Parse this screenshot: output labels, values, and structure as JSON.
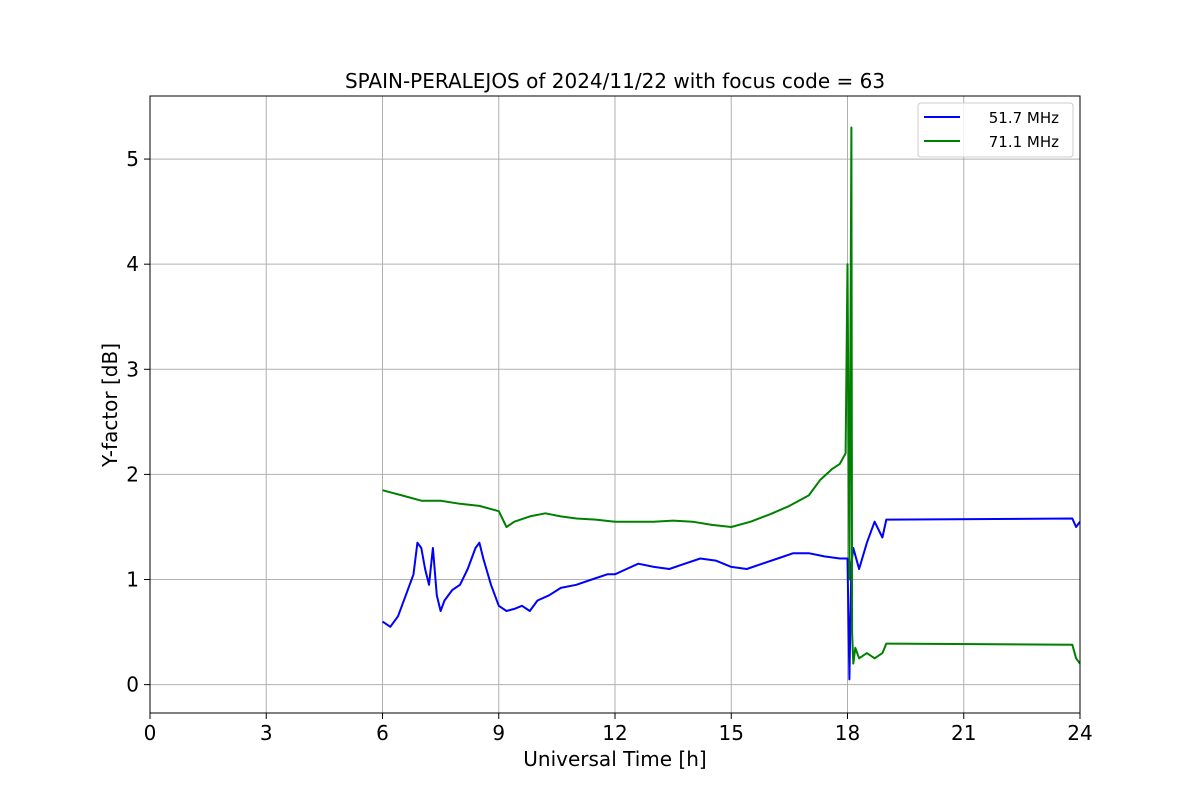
{
  "chart_data": {
    "type": "line",
    "title": "SPAIN-PERALEJOS of 2024/11/22 with focus code = 63",
    "xlabel": "Universal Time [h]",
    "ylabel": "Y-factor [dB]",
    "xlim": [
      0,
      24
    ],
    "ylim": [
      -0.27,
      5.6
    ],
    "xticks": [
      0,
      3,
      6,
      9,
      12,
      15,
      18,
      21,
      24
    ],
    "xtick_labels": [
      "0",
      "3",
      "6",
      "9",
      "12",
      "15",
      "18",
      "21",
      "24"
    ],
    "yticks": [
      0,
      1,
      2,
      3,
      4,
      5
    ],
    "ytick_labels": [
      "0",
      "1",
      "2",
      "3",
      "4",
      "5"
    ],
    "grid": true,
    "legend_position": "top-right",
    "series": [
      {
        "name": "51.7 MHz",
        "color": "#0000ff",
        "x": [
          6.0,
          6.2,
          6.4,
          6.6,
          6.8,
          6.9,
          7.0,
          7.1,
          7.2,
          7.3,
          7.4,
          7.5,
          7.6,
          7.8,
          8.0,
          8.2,
          8.4,
          8.5,
          8.6,
          8.8,
          9.0,
          9.2,
          9.4,
          9.6,
          9.8,
          10.0,
          10.3,
          10.6,
          11.0,
          11.4,
          11.8,
          12.0,
          12.3,
          12.6,
          13.0,
          13.4,
          13.8,
          14.2,
          14.6,
          15.0,
          15.4,
          15.8,
          16.2,
          16.6,
          17.0,
          17.4,
          17.8,
          18.0,
          18.05,
          18.1,
          18.15,
          18.3,
          18.5,
          18.7,
          18.9,
          19.0,
          23.8,
          23.9,
          24.0
        ],
        "values": [
          0.6,
          0.55,
          0.65,
          0.85,
          1.05,
          1.35,
          1.3,
          1.1,
          0.95,
          1.3,
          0.85,
          0.7,
          0.8,
          0.9,
          0.95,
          1.1,
          1.3,
          1.35,
          1.2,
          0.95,
          0.75,
          0.7,
          0.72,
          0.75,
          0.7,
          0.8,
          0.85,
          0.92,
          0.95,
          1.0,
          1.05,
          1.05,
          1.1,
          1.15,
          1.12,
          1.1,
          1.15,
          1.2,
          1.18,
          1.12,
          1.1,
          1.15,
          1.2,
          1.25,
          1.25,
          1.22,
          1.2,
          1.2,
          0.05,
          1.15,
          1.3,
          1.1,
          1.35,
          1.55,
          1.4,
          1.57,
          1.58,
          1.5,
          1.55
        ]
      },
      {
        "name": "71.1 MHz",
        "color": "#008000",
        "x": [
          6.0,
          6.2,
          6.5,
          7.0,
          7.5,
          8.0,
          8.5,
          9.0,
          9.2,
          9.4,
          9.8,
          10.2,
          10.6,
          11.0,
          11.5,
          12.0,
          12.5,
          13.0,
          13.5,
          14.0,
          14.5,
          15.0,
          15.5,
          16.0,
          16.5,
          17.0,
          17.3,
          17.6,
          17.8,
          17.95,
          18.0,
          18.05,
          18.1,
          18.12,
          18.15,
          18.2,
          18.3,
          18.5,
          18.7,
          18.9,
          19.0,
          23.8,
          23.9,
          24.0
        ],
        "values": [
          1.85,
          1.83,
          1.8,
          1.75,
          1.75,
          1.72,
          1.7,
          1.65,
          1.5,
          1.55,
          1.6,
          1.63,
          1.6,
          1.58,
          1.57,
          1.55,
          1.55,
          1.55,
          1.56,
          1.55,
          1.52,
          1.5,
          1.55,
          1.62,
          1.7,
          1.8,
          1.95,
          2.05,
          2.1,
          2.2,
          4.0,
          1.0,
          5.3,
          0.5,
          0.2,
          0.35,
          0.25,
          0.3,
          0.25,
          0.3,
          0.39,
          0.38,
          0.25,
          0.2
        ]
      }
    ]
  }
}
